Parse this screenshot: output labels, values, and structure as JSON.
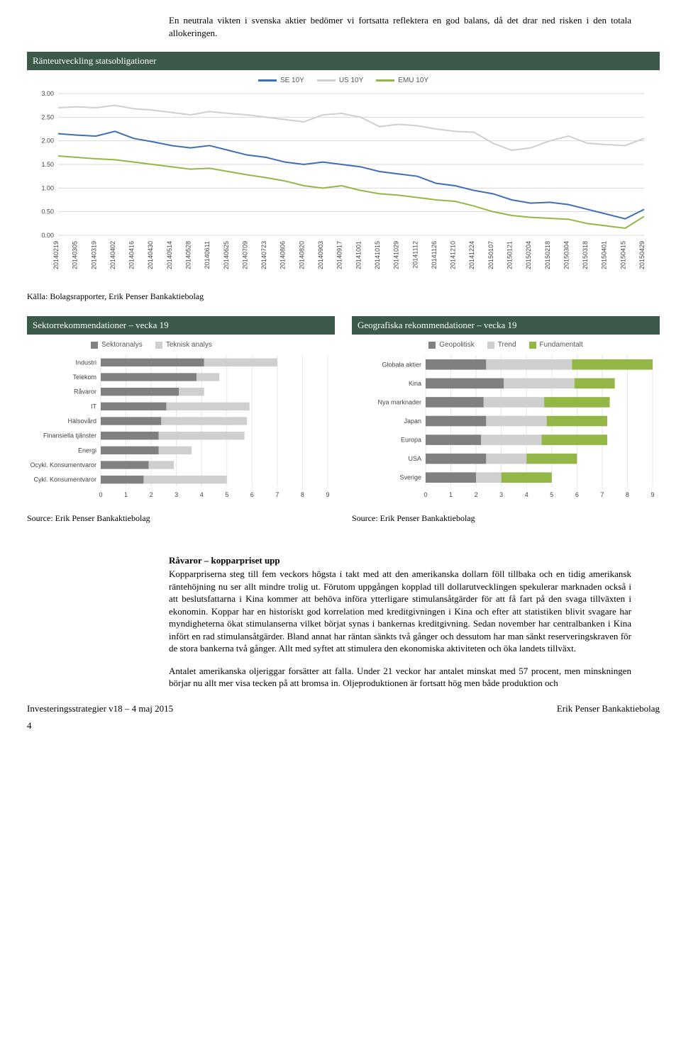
{
  "intro_text": "En neutrala vikten i svenska aktier bedömer vi fortsatta reflektera en god balans, då det drar ned risken i den totala allokeringen.",
  "rate_chart": {
    "header": "Ränteutveckling statsobligationer",
    "type": "line",
    "ylim": [
      0.0,
      3.0
    ],
    "ytick_step": 0.5,
    "yticks_labels": [
      "0.00",
      "0.50",
      "1.00",
      "1.50",
      "2.00",
      "2.50",
      "3.00"
    ],
    "grid_color": "#d9d9d9",
    "background_color": "#ffffff",
    "legend": [
      {
        "label": "SE 10Y",
        "color": "#3d6fb5"
      },
      {
        "label": "US 10Y",
        "color": "#cfcfcf"
      },
      {
        "label": "EMU 10Y",
        "color": "#93b747"
      }
    ],
    "x_labels": [
      "20140219",
      "20140305",
      "20140319",
      "20140402",
      "20140416",
      "20140430",
      "20140514",
      "20140528",
      "20140611",
      "20140625",
      "20140709",
      "20140723",
      "20140806",
      "20140820",
      "20140903",
      "20140917",
      "20141001",
      "20141015",
      "20141029",
      "20141112",
      "20141126",
      "20141210",
      "20141224",
      "20150107",
      "20150121",
      "20150204",
      "20150218",
      "20150304",
      "20150318",
      "20150401",
      "20150415",
      "20150429"
    ],
    "series": {
      "se10y": [
        2.15,
        2.12,
        2.1,
        2.2,
        2.05,
        1.98,
        1.9,
        1.85,
        1.9,
        1.8,
        1.7,
        1.65,
        1.55,
        1.5,
        1.55,
        1.5,
        1.45,
        1.35,
        1.3,
        1.25,
        1.1,
        1.05,
        0.95,
        0.88,
        0.75,
        0.68,
        0.7,
        0.65,
        0.55,
        0.45,
        0.35,
        0.55
      ],
      "us10y": [
        2.7,
        2.72,
        2.7,
        2.75,
        2.68,
        2.65,
        2.6,
        2.55,
        2.62,
        2.58,
        2.55,
        2.5,
        2.45,
        2.4,
        2.55,
        2.58,
        2.5,
        2.3,
        2.35,
        2.32,
        2.25,
        2.2,
        2.18,
        1.95,
        1.8,
        1.85,
        2.0,
        2.1,
        1.95,
        1.92,
        1.9,
        2.05
      ],
      "emu10y": [
        1.68,
        1.65,
        1.62,
        1.6,
        1.55,
        1.5,
        1.45,
        1.4,
        1.42,
        1.35,
        1.28,
        1.22,
        1.15,
        1.05,
        1.0,
        1.05,
        0.95,
        0.88,
        0.85,
        0.8,
        0.75,
        0.72,
        0.62,
        0.5,
        0.42,
        0.38,
        0.36,
        0.34,
        0.25,
        0.2,
        0.15,
        0.4
      ]
    }
  },
  "rate_source": "Källa: Bolagsrapporter, Erik Penser Bankaktiebolag",
  "sector_chart": {
    "header": "Sektorrekommendationer – vecka 19",
    "type": "horizontal_bar_stacked",
    "xlim": [
      0,
      9
    ],
    "xtick_step": 1,
    "grid_color": "#e6e6e6",
    "legend": [
      {
        "label": "Sektoranalys",
        "color": "#808080"
      },
      {
        "label": "Teknisk analys",
        "color": "#cfcfcf"
      }
    ],
    "categories": [
      "Industri",
      "Telekom",
      "Råvaror",
      "IT",
      "Hälsovård",
      "Finansiella tjänster",
      "Energi",
      "Ocykl. Konsumentvaror",
      "Cykl. Konsumentvaror"
    ],
    "segments": [
      [
        4.1,
        2.9
      ],
      [
        3.8,
        0.9
      ],
      [
        3.1,
        1.0
      ],
      [
        2.6,
        3.3
      ],
      [
        2.4,
        3.4
      ],
      [
        2.3,
        3.4
      ],
      [
        2.3,
        1.3
      ],
      [
        1.9,
        1.0
      ],
      [
        1.7,
        3.3
      ]
    ]
  },
  "geo_chart": {
    "header": "Geografiska rekommendationer – vecka 19",
    "type": "horizontal_bar_stacked",
    "xlim": [
      0,
      9
    ],
    "xtick_step": 1,
    "grid_color": "#e6e6e6",
    "legend": [
      {
        "label": "Geopolitisk",
        "color": "#808080"
      },
      {
        "label": "Trend",
        "color": "#cfcfcf"
      },
      {
        "label": "Fundamentalt",
        "color": "#93b747"
      }
    ],
    "categories": [
      "Globala aktier",
      "Kina",
      "Nya marknader",
      "Japan",
      "Europa",
      "USA",
      "Sverige"
    ],
    "segments": [
      [
        2.4,
        3.4,
        3.2
      ],
      [
        3.1,
        2.8,
        1.6
      ],
      [
        2.3,
        2.4,
        2.6
      ],
      [
        2.4,
        2.4,
        2.4
      ],
      [
        2.2,
        2.4,
        2.6
      ],
      [
        2.4,
        1.6,
        2.0
      ],
      [
        2.0,
        1.0,
        2.0
      ]
    ]
  },
  "sector_source": "Source: Erik Penser Bankaktiebolag",
  "geo_source": "Source: Erik Penser Bankaktiebolag",
  "body": {
    "heading": "Råvaror – kopparpriset upp",
    "para1": "Kopparpriserna steg till fem veckors högsta i takt med att den amerikanska dollarn föll tillbaka och en tidig amerikansk räntehöjning nu ser allt mindre trolig ut. Förutom uppgången kopplad till dollarutvecklingen spekulerar marknaden också i att beslutsfattarna i Kina kommer att behöva införa ytterligare stimulansåtgärder för att få fart på den svaga tillväxten i ekonomin. Koppar har en historiskt god korrelation med kreditgivningen i Kina och efter att statistiken blivit svagare har myndigheterna ökat stimulanserna vilket börjat synas i bankernas kreditgivning. Sedan november har centralbanken i Kina infört en rad stimulansåtgärder. Bland annat har räntan sänkts två gånger och dessutom har man sänkt reserveringskraven för de stora bankerna två gånger. Allt med syftet att stimulera den ekonomiska aktiviteten och öka landets tillväxt.",
    "para2": "Antalet amerikanska oljeriggar forsätter att falla. Under 21 veckor har antalet minskat med 57 procent, men minskningen börjar nu allt mer visa tecken på att bromsa in. Oljeproduktionen är fortsatt hög men både produktion och"
  },
  "footer": {
    "left": "Investeringsstrategier v18 – 4 maj 2015",
    "right": "Erik Penser Bankaktiebolag",
    "page": "4"
  }
}
